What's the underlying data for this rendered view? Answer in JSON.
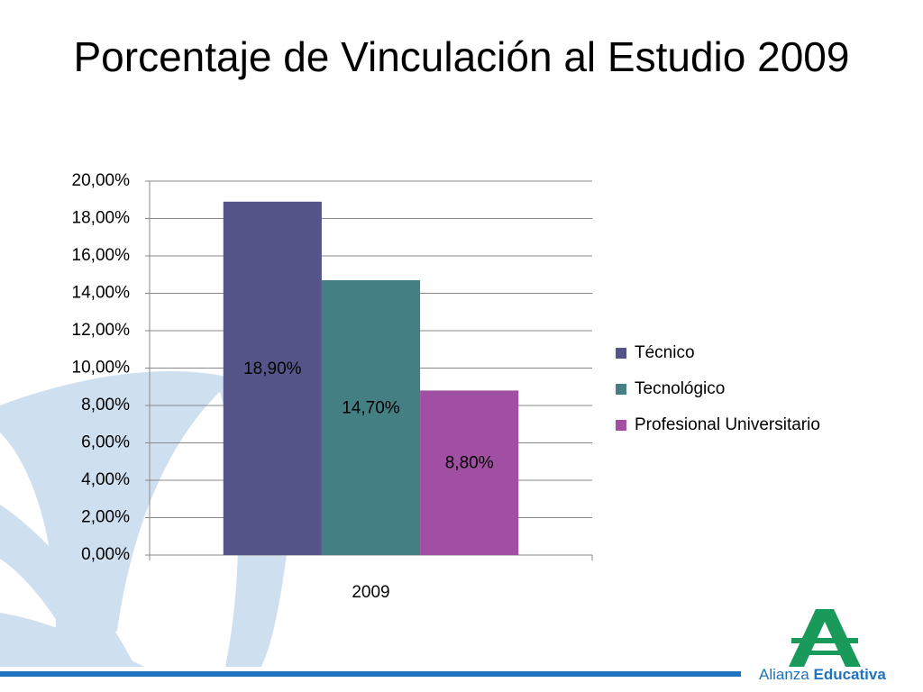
{
  "chart_data": {
    "type": "bar",
    "title": "Porcentaje de Vinculación al Estudio 2009",
    "categories": [
      "2009"
    ],
    "series": [
      {
        "name": "Técnico",
        "color": "#555488",
        "values": [
          18.9
        ],
        "value_labels": [
          "18,90%"
        ]
      },
      {
        "name": "Tecnológico",
        "color": "#437f83",
        "values": [
          14.7
        ],
        "value_labels": [
          "14,70%"
        ]
      },
      {
        "name": "Profesional Universitario",
        "color": "#a04fa3",
        "values": [
          8.8
        ],
        "value_labels": [
          "8,80%"
        ]
      }
    ],
    "ylim": [
      0,
      20
    ],
    "yticks": [
      {
        "value": 0,
        "label": "0,00%"
      },
      {
        "value": 2,
        "label": "2,00%"
      },
      {
        "value": 4,
        "label": "4,00%"
      },
      {
        "value": 6,
        "label": "6,00%"
      },
      {
        "value": 8,
        "label": "8,00%"
      },
      {
        "value": 10,
        "label": "10,00%"
      },
      {
        "value": 12,
        "label": "12,00%"
      },
      {
        "value": 14,
        "label": "14,00%"
      },
      {
        "value": 16,
        "label": "16,00%"
      },
      {
        "value": 18,
        "label": "18,00%"
      },
      {
        "value": 20,
        "label": "20,00%"
      }
    ],
    "grid": true,
    "legend": "right"
  },
  "logo": {
    "light": "Alianza",
    "bold": "Educativa"
  }
}
